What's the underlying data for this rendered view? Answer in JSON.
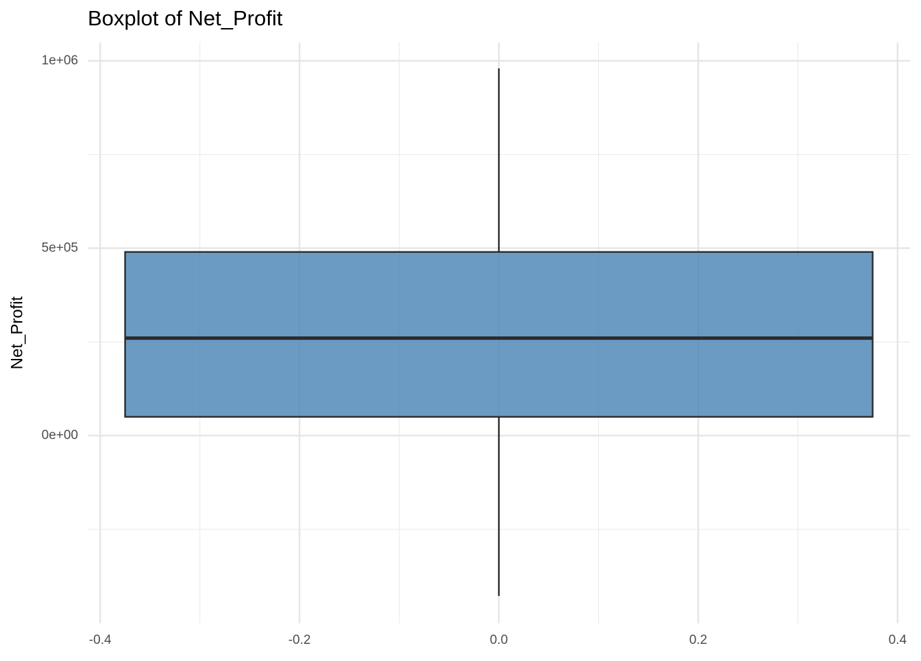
{
  "chart_data": {
    "type": "box",
    "title": "Boxplot of Net_Profit",
    "ylabel": "Net_Profit",
    "x": 0,
    "box_width": 0.75,
    "q1": 50000,
    "median": 260000,
    "q3": 490000,
    "whisker_low": -428000,
    "whisker_high": 980000,
    "color": "#4682b4",
    "alpha": 0.8,
    "outline_color": "#2b2b2b",
    "xlim": [
      -0.4125,
      0.4125
    ],
    "xticks": [
      -0.4,
      -0.2,
      {
        "value": 0,
        "label": "0.0"
      },
      0.2,
      0.4
    ],
    "x_minor_ticks": [
      -0.3,
      -0.1,
      0.1,
      0.3
    ],
    "ylim": [
      -501000,
      1049000
    ],
    "yticks": [
      {
        "value": 0,
        "label": "0e+00"
      },
      {
        "value": 500000,
        "label": "5e+05"
      },
      {
        "value": 1000000,
        "label": "1e+06"
      }
    ],
    "y_minor_ticks": [
      -250000,
      250000,
      750000
    ],
    "grid": true
  }
}
